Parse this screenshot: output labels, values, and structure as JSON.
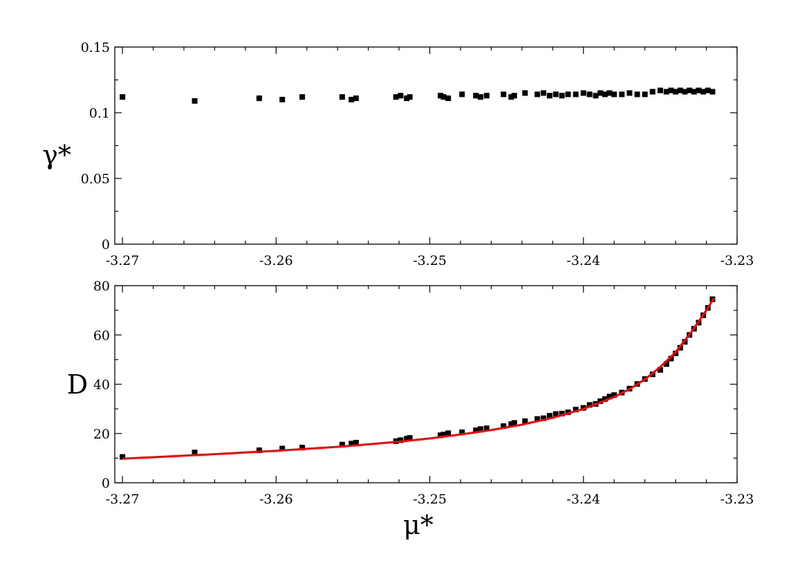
{
  "chart_data": [
    {
      "id": "top",
      "type": "scatter",
      "xlabel": "",
      "ylabel": "γ*",
      "xlim": [
        -3.2705,
        -3.23
      ],
      "ylim": [
        0,
        0.15
      ],
      "xticks": [
        -3.27,
        -3.26,
        -3.25,
        -3.24,
        -3.23
      ],
      "xtick_labels": [
        "-3.27",
        "-3.26",
        "-3.25",
        "-3.24",
        "-3.23"
      ],
      "yticks": [
        0,
        0.05,
        0.1,
        0.15
      ],
      "ytick_labels": [
        "0",
        "0.05",
        "0.1",
        "0.15"
      ],
      "series": [
        {
          "marker": "square",
          "color": "#000000",
          "x": [
            -3.27,
            -3.2653,
            -3.2611,
            -3.2596,
            -3.2583,
            -3.2557,
            -3.2551,
            -3.2548,
            -3.2522,
            -3.2519,
            -3.2515,
            -3.2513,
            -3.2493,
            -3.2491,
            -3.2488,
            -3.2479,
            -3.247,
            -3.2467,
            -3.2463,
            -3.2452,
            -3.2447,
            -3.2445,
            -3.2438,
            -3.243,
            -3.2426,
            -3.2422,
            -3.2418,
            -3.2414,
            -3.241,
            -3.2405,
            -3.24,
            -3.2396,
            -3.2392,
            -3.2389,
            -3.2386,
            -3.2383,
            -3.238,
            -3.2375,
            -3.237,
            -3.2365,
            -3.236,
            -3.2355,
            -3.235,
            -3.2346,
            -3.2343,
            -3.234,
            -3.2337,
            -3.2334,
            -3.2331,
            -3.2328,
            -3.2325,
            -3.2322,
            -3.2319,
            -3.2316
          ],
          "y": [
            0.112,
            0.109,
            0.111,
            0.11,
            0.112,
            0.112,
            0.11,
            0.111,
            0.112,
            0.113,
            0.111,
            0.112,
            0.113,
            0.112,
            0.111,
            0.114,
            0.113,
            0.112,
            0.113,
            0.114,
            0.112,
            0.113,
            0.115,
            0.114,
            0.115,
            0.113,
            0.114,
            0.113,
            0.114,
            0.114,
            0.115,
            0.114,
            0.113,
            0.115,
            0.114,
            0.115,
            0.114,
            0.114,
            0.115,
            0.114,
            0.114,
            0.116,
            0.117,
            0.116,
            0.117,
            0.116,
            0.117,
            0.116,
            0.117,
            0.116,
            0.117,
            0.116,
            0.117,
            0.116
          ]
        }
      ]
    },
    {
      "id": "bottom",
      "type": "scatter",
      "xlabel": "μ*",
      "ylabel": "D",
      "xlim": [
        -3.2705,
        -3.23
      ],
      "ylim": [
        0,
        80
      ],
      "xticks": [
        -3.27,
        -3.26,
        -3.25,
        -3.24,
        -3.23
      ],
      "xtick_labels": [
        "-3.27",
        "-3.26",
        "-3.25",
        "-3.24",
        "-3.23"
      ],
      "yticks": [
        0,
        20,
        40,
        60,
        80
      ],
      "ytick_labels": [
        "0",
        "20",
        "40",
        "60",
        "80"
      ],
      "series": [
        {
          "marker": "square",
          "color": "#000000",
          "x": [
            -3.27,
            -3.2653,
            -3.2611,
            -3.2596,
            -3.2583,
            -3.2557,
            -3.2551,
            -3.2548,
            -3.2522,
            -3.2519,
            -3.2515,
            -3.2513,
            -3.2493,
            -3.2491,
            -3.2488,
            -3.2479,
            -3.247,
            -3.2467,
            -3.2463,
            -3.2452,
            -3.2447,
            -3.2445,
            -3.2438,
            -3.243,
            -3.2426,
            -3.2422,
            -3.2418,
            -3.2414,
            -3.241,
            -3.2405,
            -3.24,
            -3.2396,
            -3.2392,
            -3.2389,
            -3.2386,
            -3.2383,
            -3.238,
            -3.2375,
            -3.237,
            -3.2365,
            -3.236,
            -3.2355,
            -3.235,
            -3.2346,
            -3.2343,
            -3.234,
            -3.2337,
            -3.2334,
            -3.2331,
            -3.2328,
            -3.2325,
            -3.2322,
            -3.2319,
            -3.2316
          ],
          "y": [
            10.5,
            12.3,
            13.2,
            13.9,
            14.3,
            15.5,
            15.9,
            16.3,
            16.9,
            17.3,
            17.9,
            18.2,
            19.3,
            19.6,
            20.1,
            20.5,
            21.3,
            21.8,
            22.1,
            23.0,
            23.8,
            24.3,
            25.0,
            25.9,
            26.2,
            27.2,
            27.9,
            28.1,
            28.6,
            29.7,
            30.4,
            31.6,
            32.0,
            33.1,
            34.0,
            35.0,
            35.6,
            36.6,
            38.2,
            40.1,
            42.1,
            44.0,
            45.8,
            48.2,
            50.4,
            52.5,
            54.8,
            57.2,
            60.0,
            62.5,
            65.0,
            68.0,
            71.0,
            74.5
          ]
        },
        {
          "type": "line",
          "color": "#ff0000",
          "x": [
            -3.27,
            -3.268,
            -3.266,
            -3.264,
            -3.262,
            -3.26,
            -3.258,
            -3.256,
            -3.254,
            -3.252,
            -3.25,
            -3.248,
            -3.246,
            -3.244,
            -3.242,
            -3.24,
            -3.238,
            -3.237,
            -3.236,
            -3.235,
            -3.234,
            -3.2335,
            -3.233,
            -3.2325,
            -3.232,
            -3.2315
          ],
          "y": [
            9.8,
            10.4,
            11.0,
            11.6,
            12.3,
            13.0,
            13.8,
            14.6,
            15.6,
            16.7,
            18.0,
            19.6,
            21.4,
            23.6,
            26.4,
            30.0,
            34.8,
            38.0,
            42.0,
            47.0,
            53.0,
            57.0,
            61.0,
            65.5,
            70.0,
            75.0
          ]
        }
      ]
    }
  ]
}
